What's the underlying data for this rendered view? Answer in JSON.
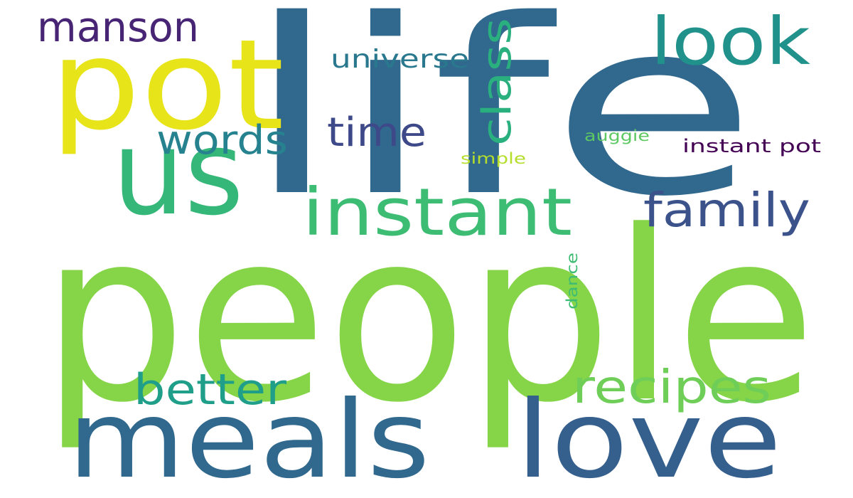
{
  "wordcloud": {
    "words": [
      {
        "text": "life",
        "color": "#31688e"
      },
      {
        "text": "people",
        "color": "#86d549"
      },
      {
        "text": "pot",
        "color": "#e7e419"
      },
      {
        "text": "us",
        "color": "#35b779"
      },
      {
        "text": "meals",
        "color": "#31688e"
      },
      {
        "text": "love",
        "color": "#355f8d"
      },
      {
        "text": "instant",
        "color": "#3dbc74"
      },
      {
        "text": "look",
        "color": "#21918c"
      },
      {
        "text": "family",
        "color": "#3b528b"
      },
      {
        "text": "recipes",
        "color": "#6ece58"
      },
      {
        "text": "better",
        "color": "#1f9e89"
      },
      {
        "text": "words",
        "color": "#26828e"
      },
      {
        "text": "time",
        "color": "#3e4989"
      },
      {
        "text": "class",
        "color": "#2ab07f"
      },
      {
        "text": "manson",
        "color": "#482475"
      },
      {
        "text": "universe",
        "color": "#2a788e"
      },
      {
        "text": "instant pot",
        "color": "#440154"
      },
      {
        "text": "auggie",
        "color": "#5ec962"
      },
      {
        "text": "simple",
        "color": "#b5de2b"
      },
      {
        "text": "dance",
        "color": "#3dbc74"
      }
    ]
  }
}
